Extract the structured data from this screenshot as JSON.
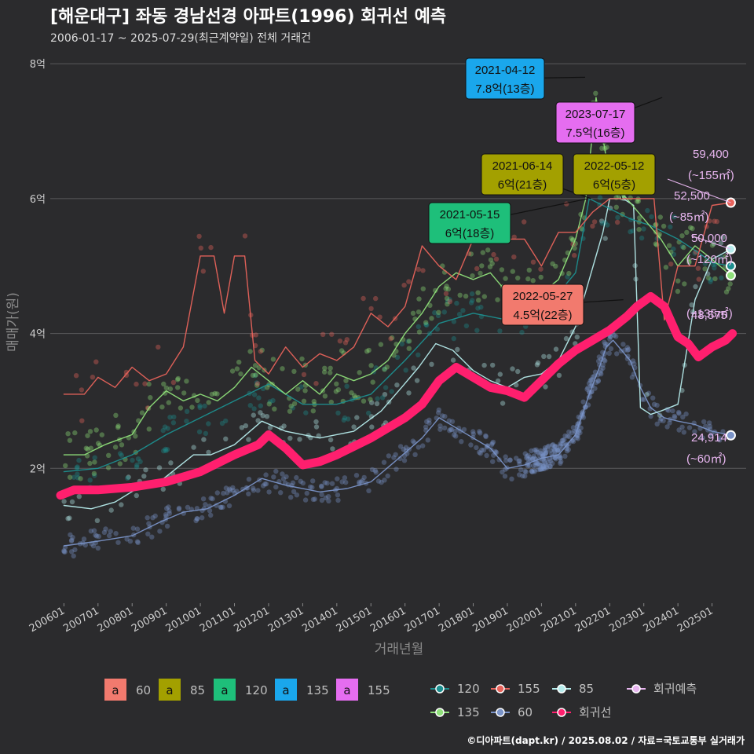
{
  "header": {
    "title": "[해운대구] 좌동 경남선경 아파트(1996) 회귀선 예측",
    "subtitle": "2006-01-17 ~ 2025-07-29(최근계약일) 전체 거래건"
  },
  "footer": {
    "credit": "©디아파트(dapt.kr) / 2025.08.02 / 자료=국토교통부 실거래가"
  },
  "chart_data": {
    "type": "scatter",
    "xlabel": "거래년월",
    "ylabel": "매매가(원)",
    "xlim": [
      2005.6,
      2026.0
    ],
    "ylim": [
      0,
      8.2
    ],
    "x_ticks": [
      "200601",
      "200701",
      "200801",
      "200901",
      "201001",
      "201101",
      "201201",
      "201301",
      "201401",
      "201501",
      "201601",
      "201701",
      "201801",
      "201901",
      "202001",
      "202101",
      "202201",
      "202301",
      "202401",
      "202501"
    ],
    "y_ticks": [
      {
        "value": 2,
        "label": "2억"
      },
      {
        "value": 4,
        "label": "4억"
      },
      {
        "value": 6,
        "label": "6억"
      },
      {
        "value": 8,
        "label": "8억"
      }
    ],
    "colors": {
      "60": "#7a93c8",
      "85": "#b6ecec",
      "120": "#1c8f8f",
      "135": "#8fe07a",
      "155": "#e8635b",
      "regression": "#ff1f6e",
      "forecast": "#e8b6f0"
    },
    "series": [
      {
        "name": "60",
        "line": [
          [
            2006.0,
            0.85
          ],
          [
            2007.0,
            0.92
          ],
          [
            2008.0,
            1.0
          ],
          [
            2008.8,
            1.2
          ],
          [
            2009.5,
            1.35
          ],
          [
            2010.2,
            1.4
          ],
          [
            2011.0,
            1.6
          ],
          [
            2011.8,
            1.85
          ],
          [
            2012.5,
            1.75
          ],
          [
            2013.5,
            1.65
          ],
          [
            2014.3,
            1.7
          ],
          [
            2015.0,
            1.8
          ],
          [
            2015.7,
            2.1
          ],
          [
            2016.5,
            2.45
          ],
          [
            2017.0,
            2.75
          ],
          [
            2017.5,
            2.6
          ],
          [
            2018.0,
            2.45
          ],
          [
            2018.5,
            2.3
          ],
          [
            2019.0,
            2.0
          ],
          [
            2019.5,
            2.05
          ],
          [
            2020.0,
            2.15
          ],
          [
            2020.5,
            2.2
          ],
          [
            2021.0,
            2.5
          ],
          [
            2021.4,
            3.1
          ],
          [
            2021.7,
            3.5
          ],
          [
            2021.9,
            3.8
          ],
          [
            2022.1,
            3.9
          ],
          [
            2022.6,
            3.6
          ],
          [
            2022.9,
            3.2
          ],
          [
            2023.2,
            2.9
          ],
          [
            2023.6,
            2.75
          ],
          [
            2024.0,
            2.7
          ],
          [
            2024.5,
            2.65
          ],
          [
            2025.0,
            2.55
          ],
          [
            2025.55,
            2.49
          ]
        ]
      },
      {
        "name": "85",
        "line": [
          [
            2006.0,
            1.45
          ],
          [
            2006.8,
            1.4
          ],
          [
            2007.5,
            1.5
          ],
          [
            2008.3,
            1.75
          ],
          [
            2008.8,
            1.8
          ],
          [
            2009.3,
            2.0
          ],
          [
            2009.8,
            2.2
          ],
          [
            2010.3,
            2.2
          ],
          [
            2011.0,
            2.35
          ],
          [
            2011.8,
            2.7
          ],
          [
            2012.5,
            2.55
          ],
          [
            2013.5,
            2.45
          ],
          [
            2014.5,
            2.55
          ],
          [
            2015.3,
            2.85
          ],
          [
            2015.9,
            3.2
          ],
          [
            2016.4,
            3.5
          ],
          [
            2016.9,
            3.85
          ],
          [
            2017.4,
            3.75
          ],
          [
            2018.0,
            3.45
          ],
          [
            2018.5,
            3.3
          ],
          [
            2019.0,
            3.2
          ],
          [
            2019.5,
            3.35
          ],
          [
            2020.0,
            3.4
          ],
          [
            2020.5,
            3.6
          ],
          [
            2021.0,
            4.1
          ],
          [
            2021.4,
            4.8
          ],
          [
            2021.8,
            5.5
          ],
          [
            2022.0,
            6.0
          ],
          [
            2022.4,
            6.0
          ],
          [
            2022.7,
            5.9
          ],
          [
            2022.9,
            2.9
          ],
          [
            2023.2,
            2.8
          ],
          [
            2023.5,
            2.85
          ],
          [
            2024.0,
            2.95
          ],
          [
            2024.5,
            4.5
          ],
          [
            2025.0,
            5.1
          ],
          [
            2025.55,
            5.25
          ]
        ]
      },
      {
        "name": "120",
        "line": [
          [
            2006.0,
            1.95
          ],
          [
            2007.0,
            2.0
          ],
          [
            2008.0,
            2.2
          ],
          [
            2009.0,
            2.5
          ],
          [
            2010.0,
            2.75
          ],
          [
            2011.0,
            3.0
          ],
          [
            2012.0,
            3.25
          ],
          [
            2013.0,
            2.95
          ],
          [
            2014.0,
            2.95
          ],
          [
            2015.0,
            3.1
          ],
          [
            2016.0,
            3.6
          ],
          [
            2017.0,
            4.15
          ],
          [
            2018.0,
            4.3
          ],
          [
            2019.0,
            4.2
          ],
          [
            2020.0,
            4.3
          ],
          [
            2021.0,
            4.9
          ],
          [
            2021.4,
            6.0
          ],
          [
            2022.0,
            5.85
          ],
          [
            2022.6,
            5.7
          ],
          [
            2023.2,
            5.6
          ],
          [
            2024.0,
            5.4
          ],
          [
            2024.6,
            5.2
          ],
          [
            2025.0,
            5.05
          ],
          [
            2025.55,
            5.0
          ]
        ]
      },
      {
        "name": "135",
        "line": [
          [
            2006.0,
            2.2
          ],
          [
            2006.6,
            2.2
          ],
          [
            2007.2,
            2.35
          ],
          [
            2008.0,
            2.5
          ],
          [
            2008.5,
            2.9
          ],
          [
            2009.0,
            3.15
          ],
          [
            2009.5,
            3.0
          ],
          [
            2010.0,
            3.1
          ],
          [
            2010.5,
            3.0
          ],
          [
            2011.0,
            3.2
          ],
          [
            2011.5,
            3.5
          ],
          [
            2012.0,
            3.3
          ],
          [
            2012.5,
            3.1
          ],
          [
            2013.0,
            3.3
          ],
          [
            2013.5,
            3.1
          ],
          [
            2014.0,
            3.4
          ],
          [
            2014.5,
            3.3
          ],
          [
            2015.0,
            3.4
          ],
          [
            2015.5,
            3.6
          ],
          [
            2016.0,
            4.0
          ],
          [
            2016.5,
            4.3
          ],
          [
            2017.0,
            4.7
          ],
          [
            2017.5,
            4.9
          ],
          [
            2018.0,
            4.8
          ],
          [
            2018.5,
            4.9
          ],
          [
            2019.0,
            4.6
          ],
          [
            2019.5,
            4.7
          ],
          [
            2020.0,
            4.6
          ],
          [
            2020.5,
            4.8
          ],
          [
            2021.0,
            5.4
          ],
          [
            2021.3,
            6.0
          ],
          [
            2021.6,
            7.5
          ],
          [
            2022.0,
            6.3
          ],
          [
            2022.5,
            6.0
          ],
          [
            2023.0,
            5.7
          ],
          [
            2023.5,
            5.4
          ],
          [
            2024.0,
            5.0
          ],
          [
            2024.5,
            5.3
          ],
          [
            2025.0,
            5.1
          ],
          [
            2025.55,
            4.86
          ]
        ]
      },
      {
        "name": "155",
        "line": [
          [
            2006.0,
            3.1
          ],
          [
            2006.6,
            3.1
          ],
          [
            2007.0,
            3.35
          ],
          [
            2007.5,
            3.2
          ],
          [
            2008.0,
            3.5
          ],
          [
            2008.5,
            3.3
          ],
          [
            2009.0,
            3.4
          ],
          [
            2009.5,
            3.8
          ],
          [
            2010.0,
            5.15
          ],
          [
            2010.4,
            5.15
          ],
          [
            2010.7,
            4.3
          ],
          [
            2011.0,
            5.15
          ],
          [
            2011.3,
            5.15
          ],
          [
            2011.6,
            3.6
          ],
          [
            2012.0,
            3.4
          ],
          [
            2012.5,
            3.8
          ],
          [
            2013.0,
            3.5
          ],
          [
            2013.5,
            3.7
          ],
          [
            2014.0,
            3.6
          ],
          [
            2014.5,
            3.8
          ],
          [
            2015.0,
            4.3
          ],
          [
            2015.5,
            4.1
          ],
          [
            2016.0,
            4.4
          ],
          [
            2016.5,
            5.3
          ],
          [
            2017.0,
            5.0
          ],
          [
            2017.5,
            4.8
          ],
          [
            2018.0,
            5.4
          ],
          [
            2018.5,
            5.4
          ],
          [
            2019.0,
            5.4
          ],
          [
            2019.5,
            5.4
          ],
          [
            2020.0,
            5.0
          ],
          [
            2020.5,
            5.5
          ],
          [
            2021.0,
            5.5
          ],
          [
            2021.5,
            5.8
          ],
          [
            2022.0,
            6.0
          ],
          [
            2022.5,
            6.0
          ],
          [
            2023.0,
            6.0
          ],
          [
            2023.3,
            6.0
          ],
          [
            2023.6,
            4.2
          ],
          [
            2024.0,
            5.0
          ],
          [
            2024.5,
            5.0
          ],
          [
            2025.0,
            5.9
          ],
          [
            2025.55,
            5.94
          ]
        ]
      },
      {
        "name": "회귀선",
        "line": [
          [
            2005.9,
            1.6
          ],
          [
            2006.3,
            1.68
          ],
          [
            2007.0,
            1.68
          ],
          [
            2008.0,
            1.72
          ],
          [
            2009.0,
            1.8
          ],
          [
            2010.0,
            1.95
          ],
          [
            2011.0,
            2.2
          ],
          [
            2011.7,
            2.35
          ],
          [
            2012.0,
            2.5
          ],
          [
            2012.5,
            2.3
          ],
          [
            2013.0,
            2.05
          ],
          [
            2013.5,
            2.1
          ],
          [
            2014.0,
            2.2
          ],
          [
            2015.0,
            2.45
          ],
          [
            2016.0,
            2.75
          ],
          [
            2016.5,
            2.95
          ],
          [
            2017.0,
            3.3
          ],
          [
            2017.5,
            3.5
          ],
          [
            2018.0,
            3.35
          ],
          [
            2018.5,
            3.2
          ],
          [
            2019.0,
            3.15
          ],
          [
            2019.5,
            3.05
          ],
          [
            2020.0,
            3.3
          ],
          [
            2020.5,
            3.55
          ],
          [
            2021.0,
            3.75
          ],
          [
            2021.5,
            3.9
          ],
          [
            2022.0,
            4.05
          ],
          [
            2022.5,
            4.25
          ],
          [
            2022.8,
            4.4
          ],
          [
            2023.2,
            4.55
          ],
          [
            2023.6,
            4.4
          ],
          [
            2024.0,
            3.95
          ],
          [
            2024.3,
            3.85
          ],
          [
            2024.6,
            3.65
          ],
          [
            2025.0,
            3.8
          ],
          [
            2025.4,
            3.9
          ],
          [
            2025.6,
            4.0
          ]
        ]
      }
    ],
    "annotations": [
      {
        "date": "2021-04-12",
        "price": "7.8억(13층)",
        "area": "135",
        "color": "#1aa7ec",
        "x": 2021.28,
        "y": 7.8
      },
      {
        "date": "2023-07-17",
        "price": "7.5억(16층)",
        "area": "155",
        "color": "#e56df0",
        "x": 2023.54,
        "y": 7.5
      },
      {
        "date": "2021-06-14",
        "price": "6억(21층)",
        "area": "85",
        "color": "#a3a000",
        "x": 2021.45,
        "y": 6.0
      },
      {
        "date": "2022-05-12",
        "price": "6억(5층)",
        "area": "85",
        "color": "#a3a000",
        "x": 2022.36,
        "y": 6.0
      },
      {
        "date": "2021-05-15",
        "price": "6억(18층)",
        "area": "120",
        "color": "#1ebf7a",
        "x": 2021.37,
        "y": 6.0
      },
      {
        "date": "2022-05-27",
        "price": "4.5억(22층)",
        "area": "60",
        "color": "#f27a6e",
        "x": 2022.4,
        "y": 4.5
      }
    ],
    "end_points": [
      {
        "value": "59,400",
        "area": "(~155㎡)",
        "y": 5.94,
        "color": "#e8635b"
      },
      {
        "value": "52,500",
        "area": "(~85㎡)",
        "y": 5.25,
        "color": "#b6ecec"
      },
      {
        "value": "50,000",
        "area": "(~120㎡)",
        "y": 5.0,
        "color": "#1c8f8f"
      },
      {
        "value": "48,575",
        "area": "(~135㎡)",
        "y": 4.86,
        "color": "#8fe07a"
      },
      {
        "value": "24,914",
        "area": "(~60㎡)",
        "y": 2.49,
        "color": "#7a93c8"
      }
    ],
    "legend_area": [
      {
        "label": "60",
        "color": "#f27a6e"
      },
      {
        "label": "85",
        "color": "#a3a000"
      },
      {
        "label": "120",
        "color": "#1ebf7a"
      },
      {
        "label": "135",
        "color": "#1aa7ec"
      },
      {
        "label": "155",
        "color": "#e56df0"
      }
    ],
    "legend_series": [
      {
        "label": "120",
        "color": "#1c8f8f"
      },
      {
        "label": "155",
        "color": "#e8635b"
      },
      {
        "label": "85",
        "color": "#b6ecec"
      },
      {
        "label": "회귀예측",
        "color": "#e8b6f0"
      },
      {
        "label": "135",
        "color": "#8fe07a"
      },
      {
        "label": "60",
        "color": "#7a93c8"
      },
      {
        "label": "회귀선",
        "color": "#ff1f6e"
      }
    ]
  }
}
